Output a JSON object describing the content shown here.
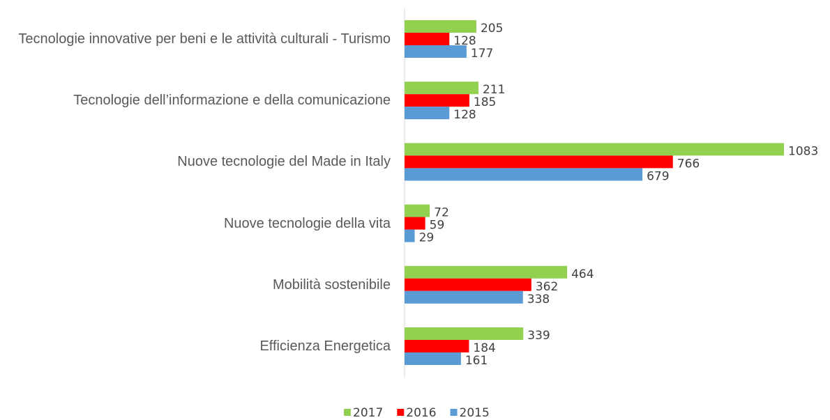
{
  "chart_data": {
    "type": "bar",
    "orientation": "horizontal",
    "categories": [
      "Tecnologie innovative per beni e le attività culturali - Turismo",
      "Tecnologie dell’informazione e della comunicazione",
      "Nuove tecnologie del Made in Italy",
      "Nuove tecnologie della vita",
      "Mobilità sostenibile",
      "Efficienza Energetica"
    ],
    "series": [
      {
        "name": "2017",
        "color": "#92d050",
        "values": [
          205,
          211,
          1083,
          72,
          464,
          339
        ]
      },
      {
        "name": "2016",
        "color": "#ff0000",
        "values": [
          128,
          185,
          766,
          59,
          362,
          184
        ]
      },
      {
        "name": "2015",
        "color": "#5b9bd5",
        "values": [
          177,
          128,
          679,
          29,
          338,
          161
        ]
      }
    ],
    "legend": "bottom"
  }
}
